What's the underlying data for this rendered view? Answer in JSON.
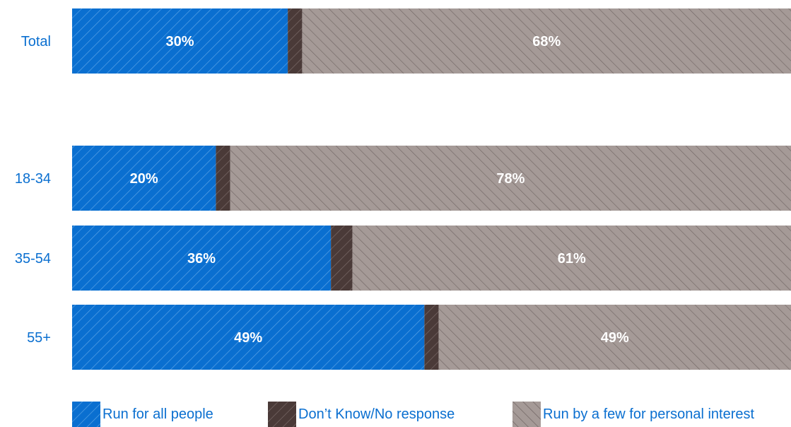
{
  "chart_data": {
    "type": "bar",
    "orientation": "horizontal",
    "stacked": true,
    "categories": [
      "Total",
      "18-34",
      "35-54",
      "55+"
    ],
    "series": [
      {
        "name": "Run for all people",
        "values": [
          30,
          20,
          36,
          49
        ],
        "color": "#0a6fd0",
        "pattern": "hatch-forward"
      },
      {
        "name": "Don’t Know/No response",
        "values": [
          2,
          2,
          3,
          2
        ],
        "color": "#4a3a38",
        "pattern": "hatch-forward"
      },
      {
        "name": "Run by a few for personal interest",
        "values": [
          68,
          78,
          61,
          49
        ],
        "color": "#a59a97",
        "pattern": "hatch-back"
      }
    ],
    "data_labels": [
      {
        "category": "Total",
        "labels": [
          "30%",
          "68%"
        ]
      },
      {
        "category": "18-34",
        "labels": [
          "20%",
          "78%"
        ]
      },
      {
        "category": "35-54",
        "labels": [
          "36%",
          "61%"
        ]
      },
      {
        "category": "55+",
        "labels": [
          "49%",
          "49%"
        ]
      }
    ],
    "xlim": [
      0,
      100
    ],
    "grid": false,
    "legend_position": "bottom"
  }
}
